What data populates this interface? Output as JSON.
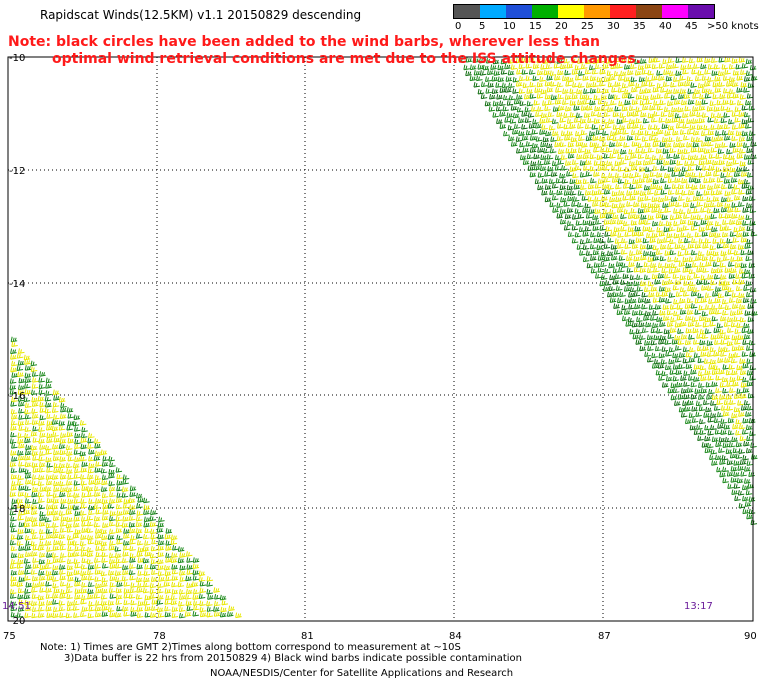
{
  "title": "Rapidscat Winds(12.5KM) v1.1 20150829 descending",
  "note": {
    "line1": "Note: black circles have been added to the wind barbs, wherever less than",
    "line2": "optimal wind retrieval conditions are met due to the ISS attitude changes."
  },
  "legend": {
    "colors": [
      "#555555",
      "#00aaff",
      "#1f4fd8",
      "#00b000",
      "#ffff00",
      "#ff9900",
      "#ff2020",
      "#8b4513",
      "#ff00ff",
      "#6a0dad"
    ],
    "labels": [
      "0",
      "5",
      "10",
      "15",
      "20",
      "25",
      "30",
      "35",
      "40",
      "45",
      ">50 knots"
    ]
  },
  "axes": {
    "x_ticks": [
      "75",
      "78",
      "81",
      "84",
      "87",
      "90"
    ],
    "y_ticks": [
      "-10",
      "-12",
      "-14",
      "-16",
      "-18",
      "-20"
    ]
  },
  "time_labels": {
    "left": "14:51",
    "right": "13:17"
  },
  "footer": {
    "line1": "Note: 1) Times are GMT 2)Times along bottom correspond to measurement at ~10S",
    "line2": "3)Data buffer is 22 hrs from 20150829 4) Black wind barbs indicate possible contamination",
    "credit": "NOAA/NESDIS/Center for Satellite Applications and Research"
  }
}
